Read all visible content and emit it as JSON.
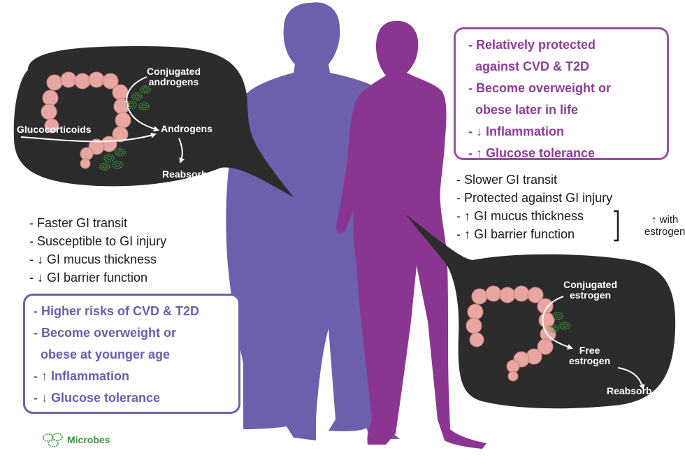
{
  "colors": {
    "male": "#6c60ad",
    "female": "#8b3592",
    "bubble": "#2c2c2c",
    "colon": "#e8a6a2",
    "microbe": "#3a9a3a"
  },
  "male_bubble": {
    "labels": {
      "conjugated": "Conjugated\nandrogens",
      "glucocorticoids": "Glucocorticoids",
      "androgens": "Androgens",
      "reabsorb": "Reabsorb"
    }
  },
  "female_bubble": {
    "labels": {
      "conjugated": "Conjugated\nestrogen",
      "free": "Free\nestrogen",
      "reabsorb": "Reabsorb"
    }
  },
  "male_traits": [
    "- Faster GI transit",
    "- Susceptible to GI injury",
    "- ↓ GI mucus thickness",
    "- ↓ GI barrier function"
  ],
  "female_traits": [
    "- Slower GI transit",
    "- Protected against GI injury",
    "- ↑ GI mucus thickness",
    "- ↑ GI barrier function"
  ],
  "estrogen_note": "↑ with\nestrogen",
  "male_outcomes": [
    "- Higher risks of CVD & T2D",
    "- Become overweight or",
    "  obese at younger age",
    "- ↑ Inflammation",
    "- ↓ Glucose tolerance"
  ],
  "female_outcomes": [
    "- Relatively protected",
    "  against CVD & T2D",
    "- Become overweight or",
    "  obese later in life",
    "- ↓ Inflammation",
    "- ↑ Glucose tolerance"
  ],
  "legend": {
    "label": "Microbes",
    "icon": "microbe-icon"
  }
}
